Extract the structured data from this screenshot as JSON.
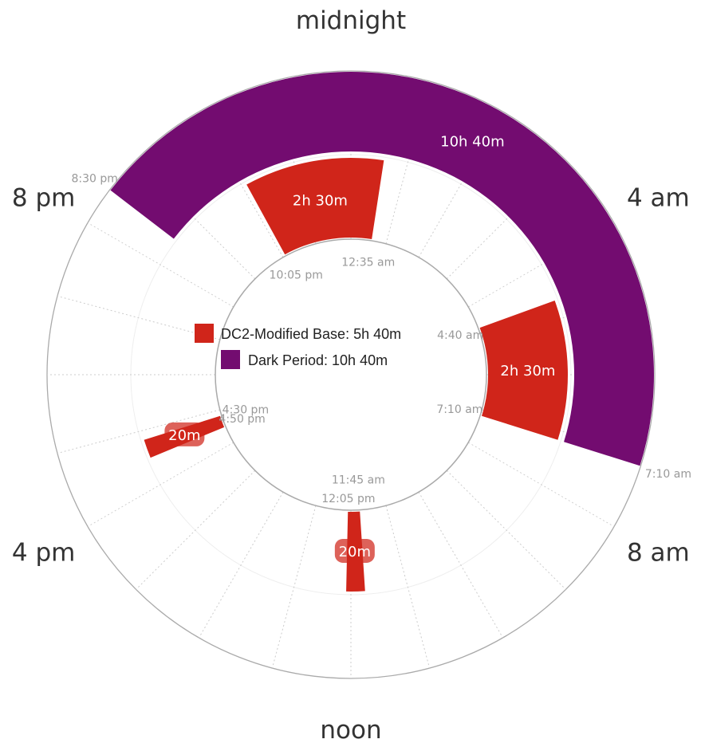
{
  "chart_data": {
    "type": "radial-clock",
    "hour_labels": [
      {
        "label": "midnight",
        "hour": 0
      },
      {
        "label": "4 am",
        "hour": 4
      },
      {
        "label": "8 am",
        "hour": 8
      },
      {
        "label": "noon",
        "hour": 12
      },
      {
        "label": "4 pm",
        "hour": 16
      },
      {
        "label": "8 pm",
        "hour": 20
      }
    ],
    "legend": [
      {
        "label": "DC2-Modified Base: 5h 40m",
        "color": "#d0251a"
      },
      {
        "label": "Dark Period: 10h 40m",
        "color": "#730c70"
      }
    ],
    "dark_period": {
      "start": "8:30 pm",
      "end": "7:10 am",
      "start_hour": 20.5,
      "end_hour": 7.1667,
      "duration": "10h 40m",
      "color": "#730c70"
    },
    "segments": [
      {
        "start": "10:05 pm",
        "end": "12:35 am",
        "start_hour": 22.0833,
        "end_hour": 0.5833,
        "duration": "2h 30m"
      },
      {
        "start": "4:40 am",
        "end": "7:10 am",
        "start_hour": 4.6667,
        "end_hour": 7.1667,
        "duration": "2h 30m"
      },
      {
        "start": "11:45 am",
        "end": "12:05 pm",
        "start_hour": 11.75,
        "end_hour": 12.0833,
        "duration": "20m"
      },
      {
        "start": "4:30 pm",
        "end": "4:50 pm",
        "start_hour": 16.5,
        "end_hour": 16.8333,
        "duration": "20m"
      }
    ],
    "segment_color": "#d0251a",
    "grid": "hourly dotted"
  }
}
